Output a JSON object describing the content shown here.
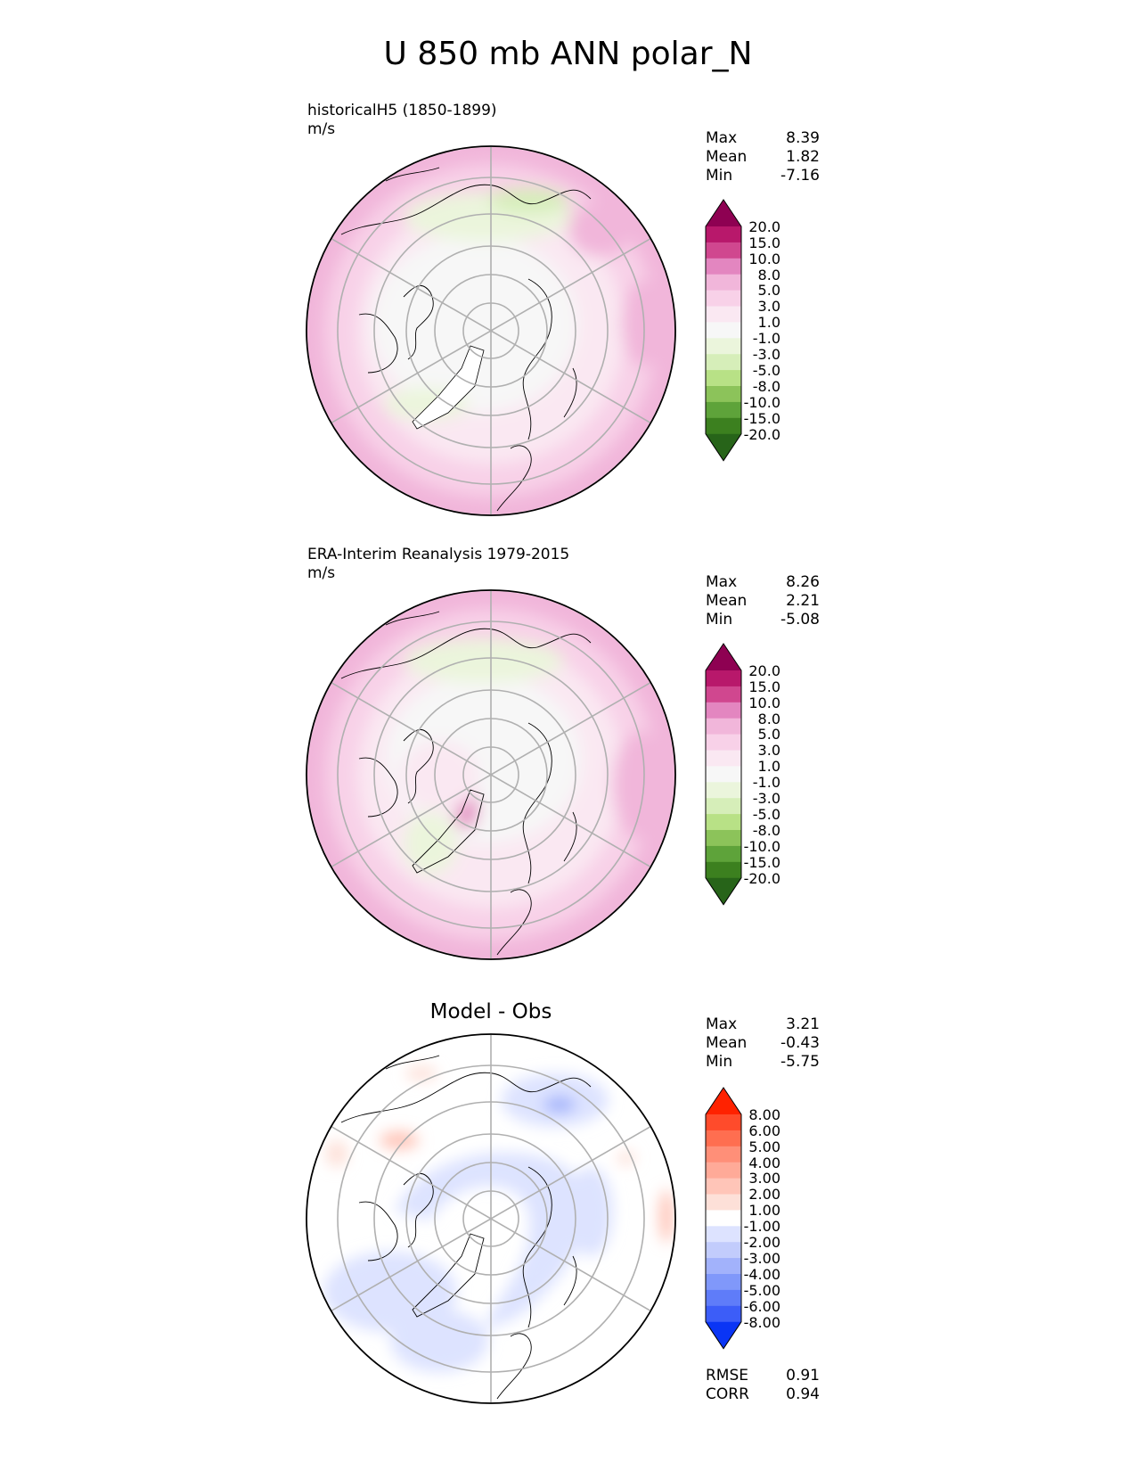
{
  "title": "U 850 mb ANN polar_N",
  "colors": {
    "land_outline": "#000000",
    "grid": "#b0b0b0",
    "frame": "#000000"
  },
  "chart_data": [
    {
      "type": "heatmap",
      "projection": "north polar stereographic",
      "title": "historicalH5 (1850-1899)",
      "units": "m/s",
      "stats": {
        "max_label": "Max",
        "max": "8.39",
        "mean_label": "Mean",
        "mean": "1.82",
        "min_label": "Min",
        "min": "-7.16"
      },
      "colorbar": {
        "ticks": [
          "20.0",
          "15.0",
          "10.0",
          "8.0",
          "5.0",
          "3.0",
          "1.0",
          "-1.0",
          "-3.0",
          "-5.0",
          "-8.0",
          "-10.0",
          "-15.0",
          "-20.0"
        ],
        "colors": [
          "#8e0152",
          "#b8186b",
          "#d0478f",
          "#e386c0",
          "#f1b6da",
          "#f8d1e8",
          "#fae8f2",
          "#f7f7f7",
          "#ebf5dc",
          "#d6eeb9",
          "#b8e186",
          "#8cc35a",
          "#5ea33a",
          "#3c801f",
          "#276419"
        ]
      }
    },
    {
      "type": "heatmap",
      "projection": "north polar stereographic",
      "title": "ERA-Interim Reanalysis 1979-2015",
      "units": "m/s",
      "stats": {
        "max_label": "Max",
        "max": "8.26",
        "mean_label": "Mean",
        "mean": "2.21",
        "min_label": "Min",
        "min": "-5.08"
      },
      "colorbar": {
        "ticks": [
          "20.0",
          "15.0",
          "10.0",
          "8.0",
          "5.0",
          "3.0",
          "1.0",
          "-1.0",
          "-3.0",
          "-5.0",
          "-8.0",
          "-10.0",
          "-15.0",
          "-20.0"
        ],
        "colors": [
          "#8e0152",
          "#b8186b",
          "#d0478f",
          "#e386c0",
          "#f1b6da",
          "#f8d1e8",
          "#fae8f2",
          "#f7f7f7",
          "#ebf5dc",
          "#d6eeb9",
          "#b8e186",
          "#8cc35a",
          "#5ea33a",
          "#3c801f",
          "#276419"
        ]
      }
    },
    {
      "type": "heatmap",
      "projection": "north polar stereographic",
      "title": "Model - Obs",
      "stats": {
        "max_label": "Max",
        "max": "3.21",
        "mean_label": "Mean",
        "mean": "-0.43",
        "min_label": "Min",
        "min": "-5.75"
      },
      "metrics": {
        "rmse_label": "RMSE",
        "rmse": "0.91",
        "corr_label": "CORR",
        "corr": "0.94"
      },
      "colorbar": {
        "ticks": [
          "8.00",
          "6.00",
          "5.00",
          "4.00",
          "3.00",
          "2.00",
          "1.00",
          "-1.00",
          "-2.00",
          "-3.00",
          "-4.00",
          "-5.00",
          "-6.00",
          "-8.00"
        ],
        "colors": [
          "#ff2200",
          "#ff4b2b",
          "#ff6e50",
          "#ff8f78",
          "#ffaa98",
          "#ffc5b8",
          "#fde0d8",
          "#ffffff",
          "#dde3ff",
          "#c2ccfc",
          "#a2b2fb",
          "#8098fa",
          "#5f7cf9",
          "#3c5df8",
          "#0a35f5"
        ]
      }
    }
  ]
}
